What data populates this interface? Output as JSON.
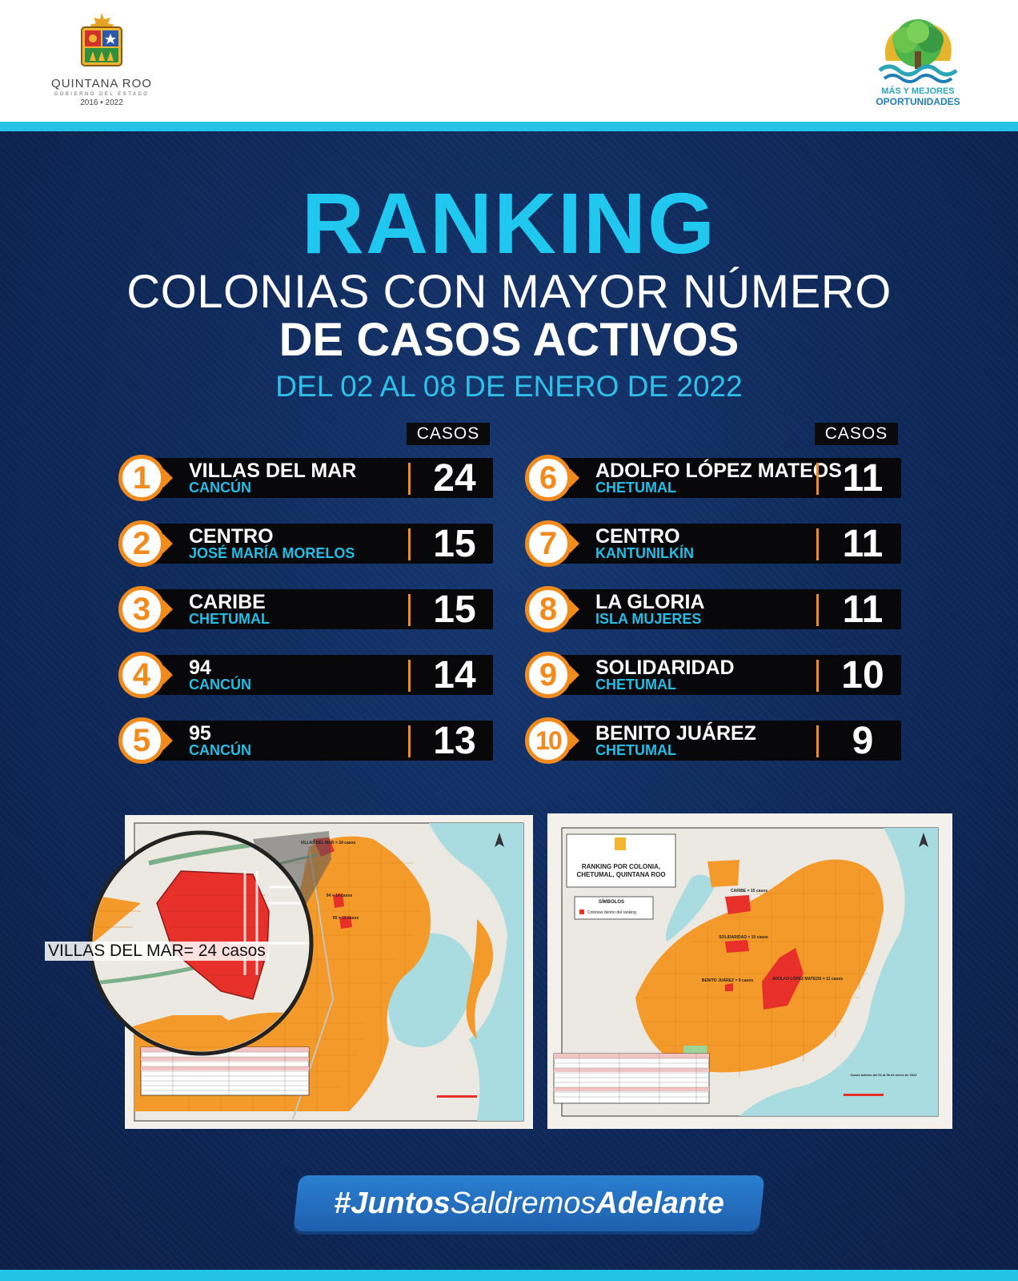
{
  "header": {
    "left_logo": {
      "name": "QUINTANA ROO",
      "subtitle": "GOBIERNO DEL ESTADO",
      "years": "2016 • 2022"
    },
    "right_logo": {
      "line1": "MÁS Y MEJORES",
      "line2": "OPORTUNIDADES"
    }
  },
  "title": "RANKING",
  "subtitle_line1": "COLONIAS CON MAYOR NÚMERO",
  "subtitle_line2": "DE CASOS ACTIVOS",
  "date_range": "DEL 02 AL 08 DE ENERO DE 2022",
  "column_label": "CASOS",
  "ranking": [
    {
      "rank": "1",
      "colonia": "VILLAS DEL MAR",
      "city": "CANCÚN",
      "cases": "24"
    },
    {
      "rank": "2",
      "colonia": "CENTRO",
      "city": "JOSÉ MARÍA MORELOS",
      "cases": "15"
    },
    {
      "rank": "3",
      "colonia": "CARIBE",
      "city": "CHETUMAL",
      "cases": "15"
    },
    {
      "rank": "4",
      "colonia": "94",
      "city": "CANCÚN",
      "cases": "14"
    },
    {
      "rank": "5",
      "colonia": "95",
      "city": "CANCÚN",
      "cases": "13"
    },
    {
      "rank": "6",
      "colonia": "ADOLFO LÓPEZ MATEOS",
      "city": "CHETUMAL",
      "cases": "11"
    },
    {
      "rank": "7",
      "colonia": "CENTRO",
      "city": "KANTUNILKÍN",
      "cases": "11"
    },
    {
      "rank": "8",
      "colonia": "LA GLORIA",
      "city": "ISLA MUJERES",
      "cases": "11"
    },
    {
      "rank": "9",
      "colonia": "SOLIDARIDAD",
      "city": "CHETUMAL",
      "cases": "10"
    },
    {
      "rank": "10",
      "colonia": "BENITO JUÁREZ",
      "city": "CHETUMAL",
      "cases": "9"
    }
  ],
  "map_left": {
    "zoom_label": "VILLAS DEL MAR= 24 casos",
    "labels": [
      "VILLAS DEL MAR = 24 casos",
      "94 = 14 casos",
      "95 = 13 casos"
    ]
  },
  "map_right": {
    "title": "RANKING POR COLONIA, CHETUMAL, QUINTANA ROO",
    "legend_title": "SÍMBOLOS",
    "legend_item": "Colonias dentro del ranking",
    "labels": [
      "CARIBE = 15 casos",
      "SOLIDARIDAD = 10 casos",
      "ADOLFO LÓPEZ MATEOS = 11 casos",
      "BENITO JUÁREZ = 9 casos"
    ],
    "footer_note": "Casos activos del 02 al 08 de enero de 2022"
  },
  "hashtag": {
    "part1": "#Juntos",
    "part2": "Saldremos",
    "part3": "Adelante"
  },
  "colors": {
    "accent_cyan": "#23c3e6",
    "rank_orange": "#f28a1c",
    "panel_navy": "#0f2a5c"
  }
}
